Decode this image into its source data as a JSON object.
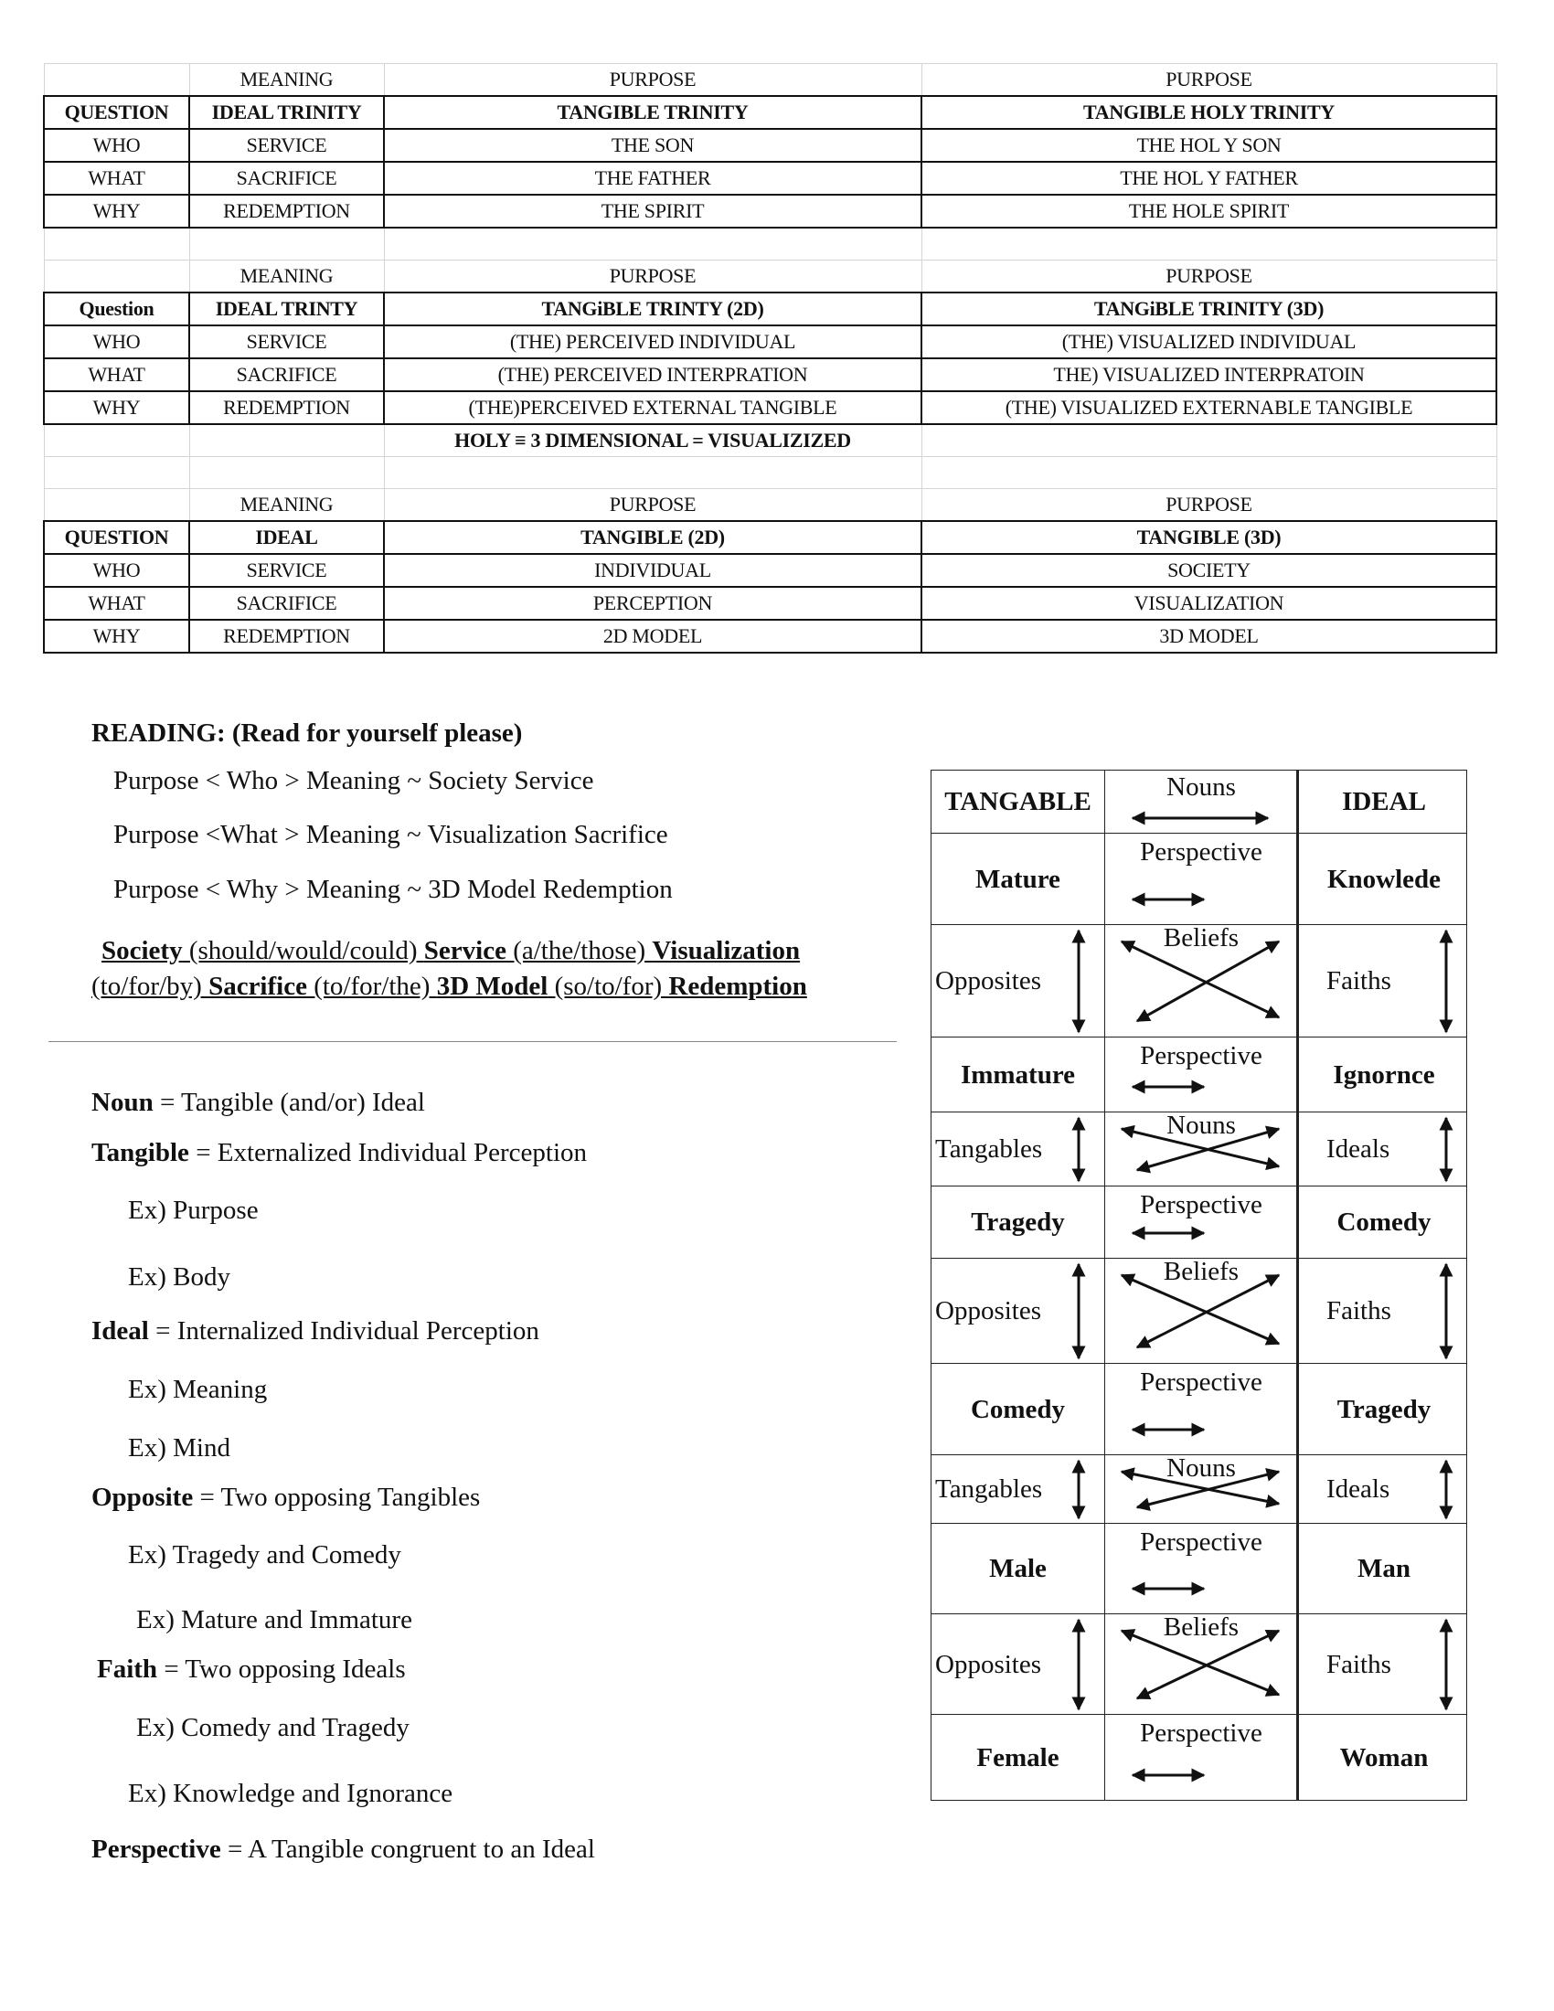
{
  "tables": {
    "rows": [
      {
        "style": "light",
        "cells": [
          "",
          "MEANING",
          "PURPOSE",
          "PURPOSE"
        ]
      },
      {
        "style": "title",
        "cells": [
          "QUESTION",
          "IDEAL TRINITY",
          "TANGIBLE TRINITY",
          "TANGIBLE HOLY TRINITY"
        ]
      },
      {
        "style": "strong",
        "cells": [
          "WHO",
          "SERVICE",
          "THE SON",
          "THE HOL Y SON"
        ]
      },
      {
        "style": "strong",
        "cells": [
          "WHAT",
          "SACRIFICE",
          "THE FATHER",
          "THE HOL Y FATHER"
        ]
      },
      {
        "style": "strong",
        "cells": [
          "WHY",
          "REDEMPTION",
          "THE SPIRIT",
          "THE HOLE SPIRIT"
        ]
      },
      {
        "style": "light",
        "cells": [
          "",
          "",
          "",
          ""
        ]
      },
      {
        "style": "light",
        "cells": [
          "",
          "MEANING",
          "PURPOSE",
          "PURPOSE"
        ]
      },
      {
        "style": "title",
        "cells": [
          "Question",
          "IDEAL TRINTY",
          "TANGiBLE TRINTY (2D)",
          "TANGiBLE TRINITY (3D)"
        ]
      },
      {
        "style": "strong",
        "cells": [
          "WHO",
          "SERVICE",
          "(THE) PERCEIVED INDIVIDUAL",
          "(THE) VISUALIZED INDIVIDUAL"
        ]
      },
      {
        "style": "strong",
        "cells": [
          "WHAT",
          "SACRIFICE",
          "(THE) PERCEIVED INTERPRATION",
          "THE) VISUALIZED INTERPRATOIN"
        ]
      },
      {
        "style": "strong",
        "cells": [
          "WHY",
          "REDEMPTION",
          "(THE)PERCEIVED EXTERNAL  TANGIBLE",
          "(THE) VISUALIZED EXTERNABLE TANGIBLE"
        ]
      },
      {
        "style": "holy",
        "cells": [
          "",
          "",
          "HOLY ≡ 3 DIMENSIONAL = VISUALIZIZED",
          ""
        ]
      },
      {
        "style": "light",
        "cells": [
          "",
          "",
          "",
          ""
        ]
      },
      {
        "style": "light",
        "cells": [
          "",
          "MEANING",
          "PURPOSE",
          "PURPOSE"
        ]
      },
      {
        "style": "title",
        "cells": [
          "QUESTION",
          "IDEAL",
          "TANGIBLE (2D)",
          "TANGIBLE (3D)"
        ]
      },
      {
        "style": "strong",
        "cells": [
          "WHO",
          "SERVICE",
          "INDIVIDUAL",
          "SOCIETY"
        ]
      },
      {
        "style": "strong",
        "cells": [
          "WHAT",
          "SACRIFICE",
          "PERCEPTION",
          "VISUALIZATION"
        ]
      },
      {
        "style": "strong",
        "cells": [
          "WHY",
          "REDEMPTION",
          "2D MODEL",
          "3D MODEL"
        ]
      }
    ]
  },
  "reading": {
    "heading": "READING: (Read for yourself please)",
    "lines": [
      "Purpose < Who > Meaning ~ Society Service",
      "Purpose <What > Meaning ~ Visualization Sacrifice",
      "Purpose < Why > Meaning ~ 3D Model Redemption"
    ],
    "sentence": [
      [
        {
          "text": "Society",
          "bold": true
        },
        {
          "text": " (should/would/could) ",
          "bold": false
        },
        {
          "text": "Service",
          "bold": true
        },
        {
          "text": " (a/the/those) ",
          "bold": false
        },
        {
          "text": "Visualization",
          "bold": true
        }
      ],
      [
        {
          "text": "(to/for/by) ",
          "bold": false
        },
        {
          "text": "Sacrifice",
          "bold": true
        },
        {
          "text": " (to/for/the) ",
          "bold": false
        },
        {
          "text": "3D Model",
          "bold": true
        },
        {
          "text": " (so/to/for) ",
          "bold": false
        },
        {
          "text": "Redemption",
          "bold": true
        }
      ]
    ]
  },
  "definitions": [
    {
      "term": "Noun",
      "text": " = Tangible (and/or) Ideal",
      "indent": 0
    },
    {
      "term": "Tangible",
      "text": " = Externalized Individual Perception",
      "indent": 0
    },
    {
      "term": "",
      "text": "Ex) Purpose",
      "indent": 1
    },
    {
      "term": "",
      "text": "Ex) Body",
      "indent": 1
    },
    {
      "term": "Ideal",
      "text": " = Internalized Individual Perception",
      "indent": 0
    },
    {
      "term": "",
      "text": "Ex) Meaning",
      "indent": 1
    },
    {
      "term": "",
      "text": "Ex) Mind",
      "indent": 1
    },
    {
      "term": "Opposite",
      "text": " = Two opposing Tangibles",
      "indent": 0
    },
    {
      "term": "",
      "text": "Ex) Tragedy and Comedy",
      "indent": 1
    },
    {
      "term": "",
      "text": "Ex) Mature and Immature",
      "indent": 2
    },
    {
      "term": "Faith",
      "text": " = Two opposing Ideals",
      "indent": 3
    },
    {
      "term": "",
      "text": "Ex) Comedy and Tragedy",
      "indent": 2
    },
    {
      "term": "",
      "text": "Ex) Knowledge and Ignorance",
      "indent": 1
    },
    {
      "term": "Perspective",
      "text": " = A Tangible congruent to an Ideal",
      "indent": 0
    }
  ],
  "diagram": {
    "rows": [
      {
        "type": "header",
        "left": "TANGABLE",
        "mid": "Nouns",
        "right": "IDEAL"
      },
      {
        "type": "perspective",
        "left": "Mature",
        "mid": "Perspective",
        "right": "Knowlede"
      },
      {
        "type": "cross",
        "left": "Opposites",
        "mid": "Beliefs",
        "right": "Faiths"
      },
      {
        "type": "perspective",
        "left": "Immature",
        "mid": "Perspective",
        "right": "Ignornce"
      },
      {
        "type": "cross",
        "left": "Tangables",
        "mid": "Nouns",
        "right": "Ideals"
      },
      {
        "type": "perspective",
        "left": "Tragedy",
        "mid": "Perspective",
        "right": "Comedy"
      },
      {
        "type": "cross",
        "left": "Opposites",
        "mid": "Beliefs",
        "right": "Faiths"
      },
      {
        "type": "perspective",
        "left": "Comedy",
        "mid": "Perspective",
        "right": "Tragedy"
      },
      {
        "type": "cross",
        "left": "Tangables",
        "mid": "Nouns",
        "right": "Ideals"
      },
      {
        "type": "perspective",
        "left": "Male",
        "mid": "Perspective",
        "right": "Man"
      },
      {
        "type": "cross",
        "left": "Opposites",
        "mid": "Beliefs",
        "right": "Faiths"
      },
      {
        "type": "perspective",
        "left": "Female",
        "mid": "Perspective",
        "right": "Woman"
      }
    ]
  }
}
